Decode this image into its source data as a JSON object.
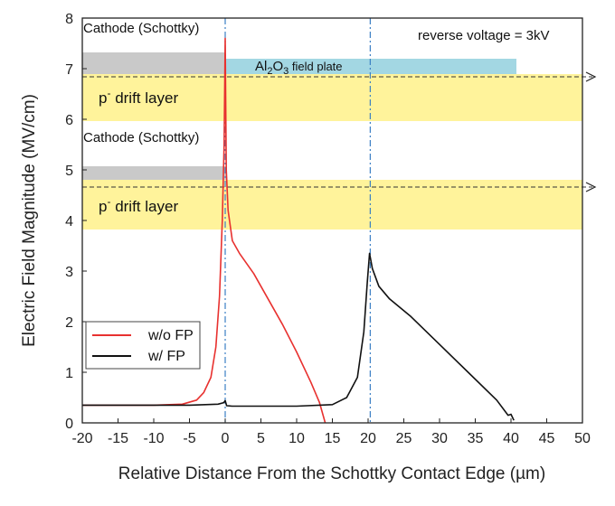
{
  "chart_data": {
    "type": "line",
    "xlabel": "Relative Distance From the Schottky Contact Edge (µm)",
    "ylabel": "Electric Field Magnitude (MV/cm)",
    "xlim": [
      -20,
      50
    ],
    "ylim": [
      0,
      8
    ],
    "xticks": [
      -20,
      -15,
      -10,
      -5,
      0,
      5,
      10,
      15,
      20,
      25,
      30,
      35,
      40,
      45,
      50
    ],
    "yticks": [
      0,
      1,
      2,
      3,
      4,
      5,
      6,
      7,
      8
    ],
    "grid": false,
    "legend_position": "bottom-left",
    "series": [
      {
        "name": "w/o FP",
        "color": "#e8312f",
        "points": [
          [
            -20,
            0.35
          ],
          [
            -10,
            0.35
          ],
          [
            -6,
            0.37
          ],
          [
            -4,
            0.45
          ],
          [
            -3,
            0.6
          ],
          [
            -2,
            0.9
          ],
          [
            -1.3,
            1.5
          ],
          [
            -0.8,
            2.5
          ],
          [
            -0.4,
            4.0
          ],
          [
            -0.15,
            5.5
          ],
          [
            0,
            7.6
          ],
          [
            0.15,
            5.0
          ],
          [
            0.4,
            4.2
          ],
          [
            1,
            3.6
          ],
          [
            2,
            3.35
          ],
          [
            4,
            2.95
          ],
          [
            6,
            2.45
          ],
          [
            8,
            1.95
          ],
          [
            10,
            1.4
          ],
          [
            12,
            0.8
          ],
          [
            13.2,
            0.4
          ],
          [
            14,
            0
          ]
        ]
      },
      {
        "name": "w/ FP",
        "color": "#111111",
        "points": [
          [
            -20,
            0.35
          ],
          [
            -5,
            0.35
          ],
          [
            -1,
            0.37
          ],
          [
            -0.2,
            0.4
          ],
          [
            0,
            0.44
          ],
          [
            0.2,
            0.34
          ],
          [
            1,
            0.33
          ],
          [
            10,
            0.33
          ],
          [
            15,
            0.36
          ],
          [
            17,
            0.5
          ],
          [
            18.5,
            0.9
          ],
          [
            19.4,
            1.8
          ],
          [
            19.9,
            2.8
          ],
          [
            20.2,
            3.35
          ],
          [
            20.6,
            3.05
          ],
          [
            21.5,
            2.7
          ],
          [
            23,
            2.45
          ],
          [
            26,
            2.1
          ],
          [
            30,
            1.55
          ],
          [
            34,
            1.0
          ],
          [
            38,
            0.45
          ],
          [
            39.6,
            0.15
          ],
          [
            40,
            0.17
          ],
          [
            40.4,
            0.05
          ]
        ]
      }
    ],
    "vertical_lines": [
      0,
      20.3
    ],
    "annotations": {
      "reverse_voltage": "reverse voltage = 3kV",
      "field_plate_label_prefix": "Al",
      "field_plate_sub1": "2",
      "field_plate_mid": "O",
      "field_plate_sub2": "3",
      "field_plate_suffix": " field plate",
      "cathode_top": "Cathode (Schottky)",
      "cathode_bottom": "Cathode (Schottky)",
      "drift_top_base": "p",
      "drift_top_sup": "-",
      "drift_top_rest": " drift layer",
      "drift_bottom_base": "p",
      "drift_bottom_sup": "-",
      "drift_bottom_rest": " drift layer"
    }
  }
}
